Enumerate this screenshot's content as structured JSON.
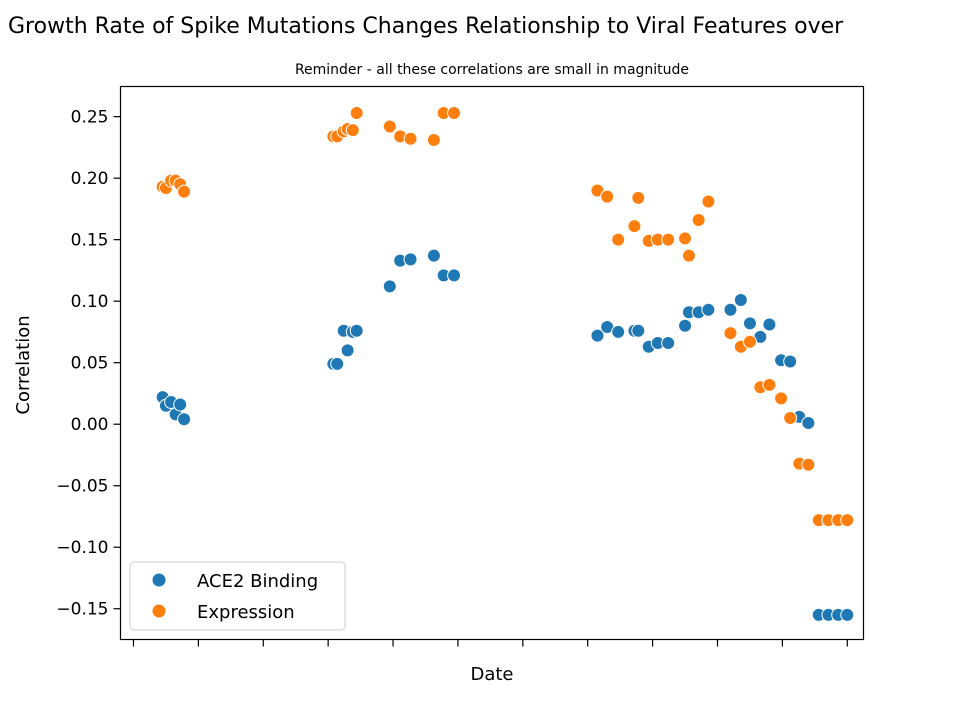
{
  "chart_data": {
    "type": "scatter",
    "title": "Growth Rate of Spike Mutations Changes Relationship to Viral Features over",
    "subtitle": "Reminder - all these correlations are small in magnitude",
    "xlabel": "Date",
    "ylabel": "Correlation",
    "x_tick_count": 12,
    "x_tick_labels_shown": false,
    "ylim": [
      -0.175,
      0.2745
    ],
    "xlim": [
      -0.2,
      11.25
    ],
    "yticks": [
      -0.15,
      -0.1,
      -0.05,
      0.0,
      0.05,
      0.1,
      0.15,
      0.2,
      0.25
    ],
    "ytick_labels": [
      "−0.15",
      "−0.10",
      "−0.05",
      "0.00",
      "0.05",
      "0.10",
      "0.15",
      "0.20",
      "0.25"
    ],
    "grid": false,
    "legend_position": "lower-left",
    "series": [
      {
        "name": "ACE2 Binding",
        "color": "#1f77b4",
        "points": [
          [
            0.45,
            0.022
          ],
          [
            0.5,
            0.015
          ],
          [
            0.58,
            0.018
          ],
          [
            0.65,
            0.008
          ],
          [
            0.72,
            0.016
          ],
          [
            0.78,
            0.004
          ],
          [
            3.08,
            0.049
          ],
          [
            3.14,
            0.049
          ],
          [
            3.24,
            0.076
          ],
          [
            3.3,
            0.06
          ],
          [
            3.38,
            0.075
          ],
          [
            3.44,
            0.076
          ],
          [
            3.95,
            0.112
          ],
          [
            4.11,
            0.133
          ],
          [
            4.27,
            0.134
          ],
          [
            4.63,
            0.137
          ],
          [
            4.78,
            0.121
          ],
          [
            4.94,
            0.121
          ],
          [
            7.15,
            0.072
          ],
          [
            7.3,
            0.079
          ],
          [
            7.47,
            0.075
          ],
          [
            7.72,
            0.076
          ],
          [
            7.78,
            0.076
          ],
          [
            7.94,
            0.063
          ],
          [
            8.08,
            0.066
          ],
          [
            8.24,
            0.066
          ],
          [
            8.5,
            0.08
          ],
          [
            8.56,
            0.091
          ],
          [
            8.71,
            0.091
          ],
          [
            8.86,
            0.093
          ],
          [
            9.2,
            0.093
          ],
          [
            9.36,
            0.101
          ],
          [
            9.5,
            0.082
          ],
          [
            9.66,
            0.071
          ],
          [
            9.8,
            0.081
          ],
          [
            9.98,
            0.052
          ],
          [
            10.12,
            0.051
          ],
          [
            10.26,
            0.006
          ],
          [
            10.4,
            0.001
          ],
          [
            10.56,
            -0.155
          ],
          [
            10.71,
            -0.155
          ],
          [
            10.86,
            -0.155
          ],
          [
            11.0,
            -0.155
          ]
        ]
      },
      {
        "name": "Expression",
        "color": "#ff7f0e",
        "points": [
          [
            0.45,
            0.193
          ],
          [
            0.5,
            0.192
          ],
          [
            0.58,
            0.198
          ],
          [
            0.65,
            0.198
          ],
          [
            0.72,
            0.195
          ],
          [
            0.78,
            0.189
          ],
          [
            3.08,
            0.234
          ],
          [
            3.14,
            0.234
          ],
          [
            3.24,
            0.238
          ],
          [
            3.3,
            0.24
          ],
          [
            3.38,
            0.239
          ],
          [
            3.44,
            0.253
          ],
          [
            3.95,
            0.242
          ],
          [
            4.11,
            0.234
          ],
          [
            4.27,
            0.232
          ],
          [
            4.63,
            0.231
          ],
          [
            4.78,
            0.253
          ],
          [
            4.94,
            0.253
          ],
          [
            7.15,
            0.19
          ],
          [
            7.3,
            0.185
          ],
          [
            7.47,
            0.15
          ],
          [
            7.72,
            0.161
          ],
          [
            7.78,
            0.184
          ],
          [
            7.94,
            0.149
          ],
          [
            8.08,
            0.15
          ],
          [
            8.24,
            0.15
          ],
          [
            8.5,
            0.151
          ],
          [
            8.56,
            0.137
          ],
          [
            8.71,
            0.166
          ],
          [
            8.86,
            0.181
          ],
          [
            9.2,
            0.074
          ],
          [
            9.36,
            0.063
          ],
          [
            9.5,
            0.067
          ],
          [
            9.66,
            0.03
          ],
          [
            9.8,
            0.032
          ],
          [
            9.98,
            0.021
          ],
          [
            10.12,
            0.005
          ],
          [
            10.26,
            -0.032
          ],
          [
            10.4,
            -0.033
          ],
          [
            10.56,
            -0.078
          ],
          [
            10.71,
            -0.078
          ],
          [
            10.86,
            -0.078
          ],
          [
            11.0,
            -0.078
          ]
        ]
      }
    ]
  }
}
